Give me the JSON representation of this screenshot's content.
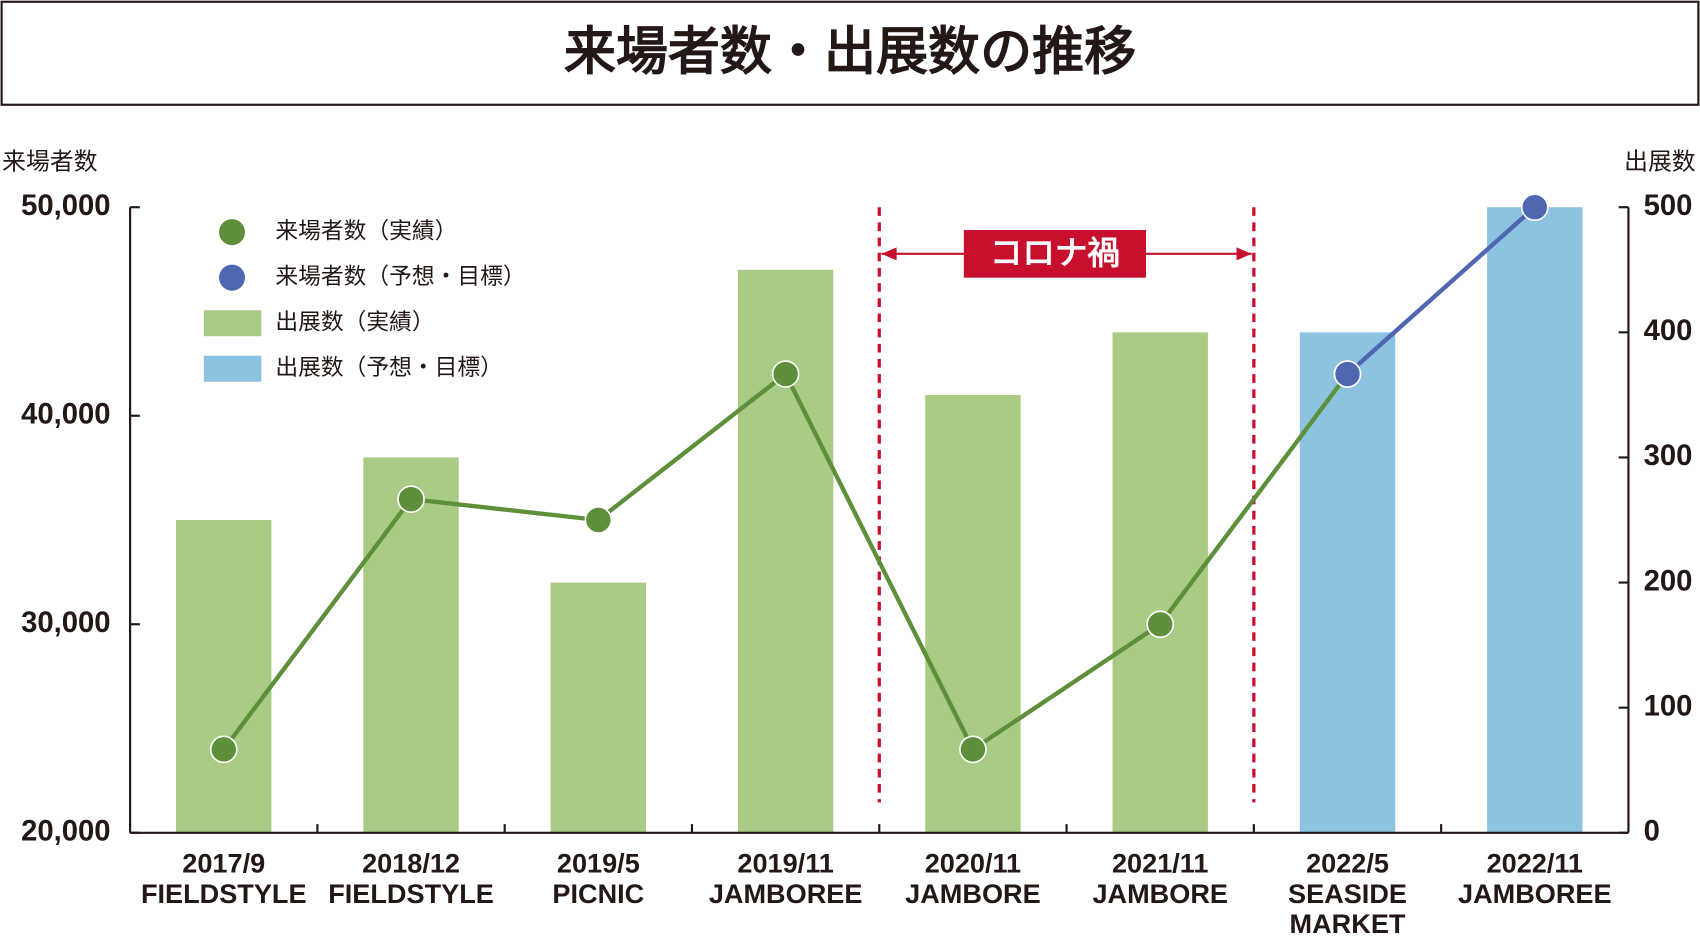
{
  "chart_data": {
    "type": "bar-line",
    "title": "来場者数・出展数の推移",
    "y_label": "来場者数",
    "y2_label": "出展数",
    "categories": [
      [
        "2017/9",
        "FIELDSTYLE"
      ],
      [
        "2018/12",
        "FIELDSTYLE"
      ],
      [
        "2019/5",
        "PICNIC"
      ],
      [
        "2019/11",
        "JAMBOREE"
      ],
      [
        "2020/11",
        "JAMBORE"
      ],
      [
        "2021/11",
        "JAMBORE"
      ],
      [
        "2022/5",
        "SEASIDE",
        "MARKET"
      ],
      [
        "2022/11",
        "JAMBOREE"
      ]
    ],
    "series": [
      {
        "name": "来場者数（実績）",
        "kind": "line",
        "color": "#5e8f3a",
        "values": [
          24000,
          36000,
          35000,
          42000,
          24000,
          30000,
          42000,
          null
        ]
      },
      {
        "name": "来場者数（予想・目標）",
        "kind": "line",
        "color": "#4f66b0",
        "values": [
          null,
          null,
          null,
          null,
          null,
          null,
          42000,
          50000
        ]
      },
      {
        "name": "出展数（実績）",
        "kind": "bar",
        "axis": "y2",
        "color": "#a9cb85",
        "values": [
          250,
          300,
          200,
          450,
          350,
          400,
          null,
          null
        ]
      },
      {
        "name": "出展数（予想・目標）",
        "kind": "bar",
        "axis": "y2",
        "color": "#8cc3e1",
        "values": [
          null,
          null,
          null,
          null,
          null,
          null,
          400,
          500
        ]
      }
    ],
    "ylim": [
      20000,
      50000
    ],
    "yticks": [
      {
        "value": 20000,
        "label": "20,000"
      },
      {
        "value": 30000,
        "label": "30,000"
      },
      {
        "value": 40000,
        "label": "40,000"
      },
      {
        "value": 50000,
        "label": "50,000"
      }
    ],
    "y2lim": [
      0,
      500
    ],
    "y2ticks": [
      0,
      100,
      200,
      300,
      400,
      500
    ],
    "annotation": "コロナ禍",
    "annotation_color": "#c8102e"
  }
}
